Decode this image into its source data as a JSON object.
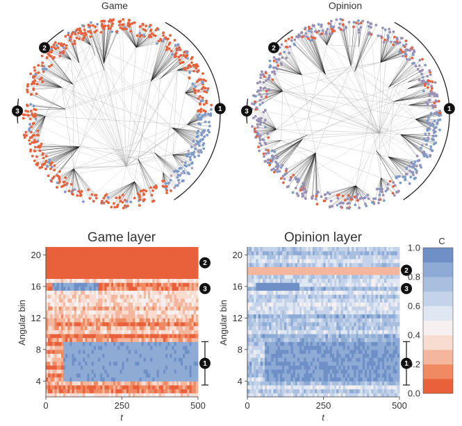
{
  "chart_data": [
    {
      "type": "network",
      "title": "Game",
      "node_colors": [
        "#e8613a",
        "#7d9bc9",
        "#b7a0b7"
      ],
      "markers": [
        "1",
        "2",
        "3"
      ]
    },
    {
      "type": "network",
      "title": "Opinion",
      "node_colors": [
        "#9a8fb4",
        "#7d9bc9",
        "#e8613a"
      ],
      "markers": [
        "1",
        "2",
        "3"
      ]
    },
    {
      "type": "heatmap",
      "title": "Game layer",
      "xlabel": "t",
      "ylabel": "Angular bin",
      "xlim": [
        0,
        500
      ],
      "ylim": [
        2,
        21
      ],
      "xticks": [
        0,
        250,
        500
      ],
      "yticks": [
        4,
        8,
        12,
        16,
        20
      ],
      "bands": [
        {
          "row_from": 17,
          "row_to": 21,
          "t_from": 0,
          "t_to": 500,
          "value": 0.05,
          "label": "2"
        },
        {
          "row_from": 15.5,
          "row_to": 16.5,
          "t_from": 20,
          "t_to": 170,
          "value": 0.9,
          "label": "3"
        },
        {
          "row_from": 4,
          "row_to": 9,
          "t_from": 60,
          "t_to": 500,
          "value": 0.88,
          "label": "1"
        }
      ],
      "background_range": [
        0.05,
        0.4
      ],
      "markers": [
        "2",
        "3",
        "1"
      ]
    },
    {
      "type": "heatmap",
      "title": "Opinion layer",
      "xlabel": "t",
      "ylabel": "Angular bin",
      "xlim": [
        0,
        500
      ],
      "ylim": [
        2,
        21
      ],
      "xticks": [
        0,
        250,
        500
      ],
      "yticks": [
        4,
        8,
        12,
        16,
        20
      ],
      "bands": [
        {
          "row_from": 17.7,
          "row_to": 18.4,
          "t_from": 0,
          "t_to": 500,
          "value": 0.25,
          "label": "2"
        },
        {
          "row_from": 15.6,
          "row_to": 16.4,
          "t_from": 30,
          "t_to": 170,
          "value": 0.95,
          "label": "3"
        },
        {
          "row_from": 4,
          "row_to": 9,
          "t_from": 60,
          "t_to": 500,
          "value": 0.9,
          "label": "1"
        }
      ],
      "background_range": [
        0.55,
        0.8
      ],
      "markers": [
        "2",
        "3",
        "1"
      ]
    }
  ],
  "colorbar": {
    "label": "C",
    "ticks": [
      "0.0",
      "0.2",
      "0.4",
      "0.6",
      "0.8",
      "1.0"
    ],
    "colors": [
      "#e8613a",
      "#ef8a63",
      "#f4b79e",
      "#f8dcd0",
      "#f6f1f0",
      "#dfe7f2",
      "#c4d3e9",
      "#a8bfdf",
      "#8eabd6",
      "#6e90c6"
    ]
  }
}
